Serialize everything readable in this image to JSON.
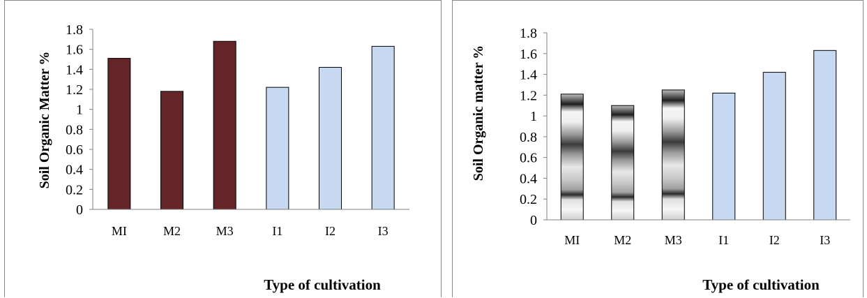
{
  "chart_data": [
    {
      "type": "bar",
      "categories": [
        "MI",
        "M2",
        "M3",
        "I1",
        "I2",
        "I3"
      ],
      "values": [
        1.51,
        1.18,
        1.68,
        1.22,
        1.42,
        1.63
      ],
      "ylabel": "Soil Organic Matter %",
      "xlabel": "Type of cultivation",
      "ylim": [
        0,
        1.8
      ],
      "yticks": [
        "0",
        "0.2",
        "0.4",
        "0.6",
        "0.8",
        "1",
        "1.2",
        "1.4",
        "1.6",
        "1.8"
      ],
      "grid": false,
      "colors": [
        "#632527",
        "#632527",
        "#632527",
        "#c6d9f1",
        "#c6d9f1",
        "#c6d9f1"
      ]
    },
    {
      "type": "bar",
      "categories": [
        "MI",
        "M2",
        "M3",
        "I1",
        "I2",
        "I3"
      ],
      "values": [
        1.21,
        1.1,
        1.25,
        1.22,
        1.42,
        1.63
      ],
      "ylabel": "Soil Organic matter %",
      "xlabel": "Type of cultivation",
      "ylim": [
        0,
        1.8
      ],
      "yticks": [
        "0",
        "0.2",
        "0.4",
        "0.6",
        "0.8",
        "1",
        "1.2",
        "1.4",
        "1.6",
        "1.8"
      ],
      "grid": false,
      "colors": [
        "pattern-gray",
        "pattern-gray",
        "pattern-gray",
        "#c6d9f1",
        "#c6d9f1",
        "#c6d9f1"
      ]
    }
  ]
}
